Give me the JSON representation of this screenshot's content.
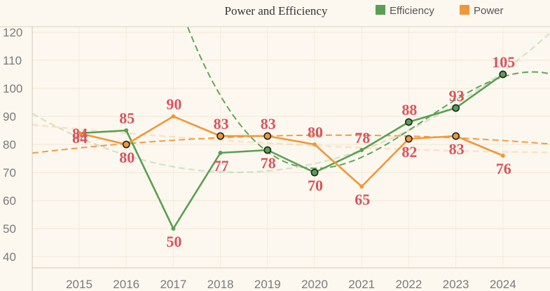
{
  "chart_data": {
    "type": "line",
    "title": "Power and Efficiency",
    "xlabel": "",
    "ylabel": "",
    "categories": [
      "2015",
      "2016",
      "2017",
      "2018",
      "2019",
      "2020",
      "2021",
      "2022",
      "2023",
      "2024"
    ],
    "ylim": [
      36,
      122
    ],
    "yticks": [
      40,
      50,
      60,
      70,
      80,
      90,
      100,
      110,
      120
    ],
    "grid": true,
    "legend": "top-right",
    "series": [
      {
        "name": "Efficiency",
        "color": "#5aa052",
        "values": [
          84,
          85,
          50,
          77,
          78,
          70,
          78,
          88,
          93,
          105
        ],
        "highlighted": [
          false,
          false,
          false,
          false,
          true,
          true,
          false,
          true,
          true,
          true
        ]
      },
      {
        "name": "Power",
        "color": "#f0973a",
        "values": [
          84,
          80,
          90,
          83,
          83,
          80,
          65,
          82,
          83,
          76
        ],
        "highlighted": [
          false,
          true,
          false,
          true,
          true,
          false,
          false,
          true,
          true,
          false
        ]
      }
    ],
    "label_color": "#d9535f"
  }
}
